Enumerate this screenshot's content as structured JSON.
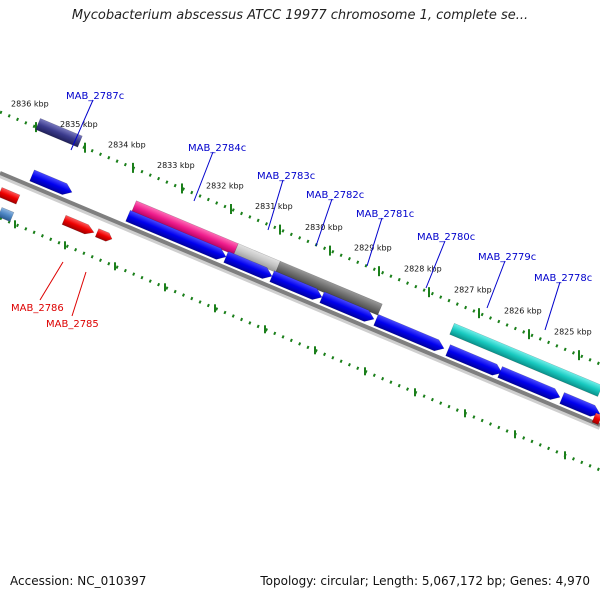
{
  "title": "Mycobacterium abscessus ATCC 19977 chromosome 1, complete se...",
  "footer": {
    "accession": "Accession: NC_010397",
    "summary": "Topology: circular; Length: 5,067,172 bp; Genes: 4,970"
  },
  "colors": {
    "backbone": "#7f7f7f",
    "cds_blue": "#0000ee",
    "label_blue": "#0000cc",
    "label_red": "#dd0000",
    "tick": "#1a7f1a"
  },
  "kbp_ticks": [
    "2836 kbp",
    "2835 kbp",
    "2834 kbp",
    "2833 kbp",
    "2832 kbp",
    "2831 kbp",
    "2830 kbp",
    "2829 kbp",
    "2828 kbp",
    "2827 kbp",
    "2826 kbp",
    "2825 kbp"
  ],
  "genes_reverse": [
    "MAB_2787c",
    "MAB_2784c",
    "MAB_2783c",
    "MAB_2782c",
    "MAB_2781c",
    "MAB_2780c",
    "MAB_2779c",
    "MAB_2778c"
  ],
  "genes_forward": [
    "MAB_2786",
    "MAB_2785"
  ]
}
